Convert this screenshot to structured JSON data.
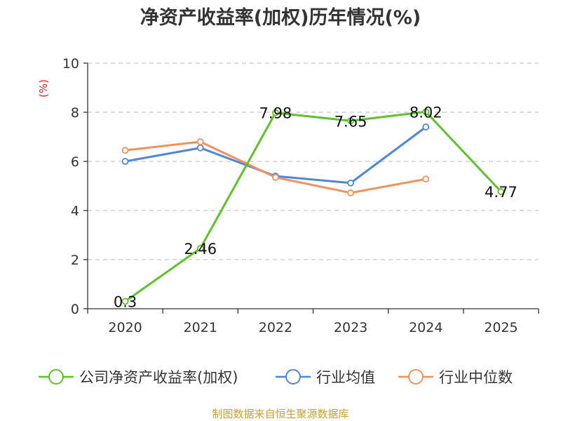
{
  "colors": {
    "roe": "#5ec22a",
    "industry_avg": "#4e86d8",
    "industry_median": "#f2905e"
  },
  "chart_data": {
    "type": "line",
    "title": "净资产收益率(加权)历年情况(%)",
    "ylabel": "(%)",
    "xlabel": "",
    "categories": [
      "2020",
      "2021",
      "2022",
      "2023",
      "2024",
      "2025"
    ],
    "ylim": [
      0,
      10
    ],
    "yticks": [
      "0",
      "2",
      "4",
      "6",
      "8",
      "10"
    ],
    "grid": true,
    "legend_position": "bottom",
    "series": [
      {
        "name": "公司净资产收益率(加权)",
        "color_key": "roe",
        "values": [
          0.3,
          2.46,
          7.98,
          7.65,
          8.02,
          4.77
        ],
        "labels": [
          "0.3",
          "2.46",
          "7.98",
          "7.65",
          "8.02",
          "4.77"
        ],
        "show_labels": true
      },
      {
        "name": "行业均值",
        "color_key": "industry_avg",
        "values": [
          6.0,
          6.55,
          5.4,
          5.12,
          7.4,
          null
        ],
        "show_labels": false
      },
      {
        "name": "行业中位数",
        "color_key": "industry_median",
        "values": [
          6.45,
          6.8,
          5.35,
          4.72,
          5.28,
          null
        ],
        "show_labels": false
      }
    ]
  },
  "footer": {
    "source": "制图数据来自恒生聚源数据库"
  }
}
